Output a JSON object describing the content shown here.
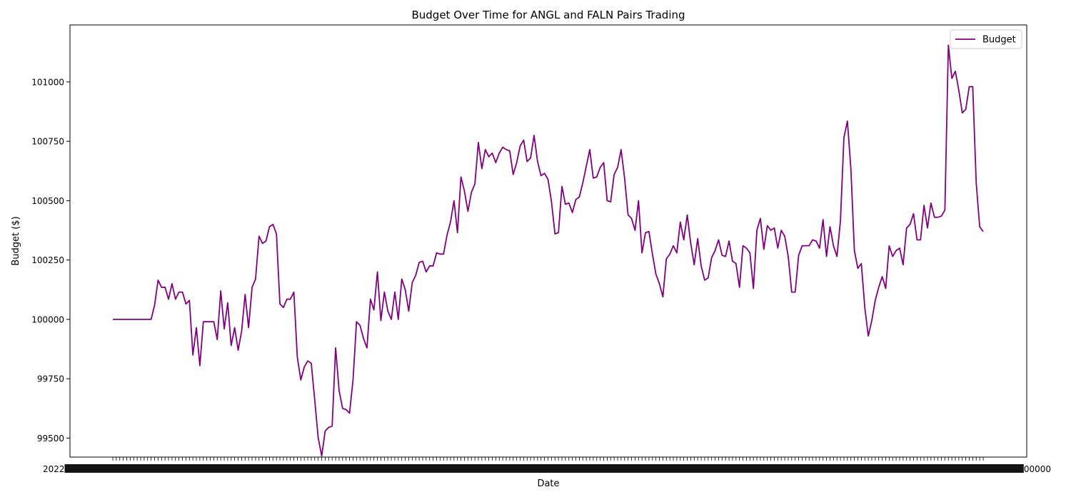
{
  "chart_data": {
    "type": "line",
    "title": "Budget Over Time for ANGL and FALN Pairs Trading",
    "xlabel": "Date",
    "ylabel": "Budget ($)",
    "ylim": [
      99420,
      101240
    ],
    "yticks": [
      99500,
      99750,
      100000,
      100250,
      100500,
      100750,
      101000
    ],
    "ytick_labels": [
      "99500",
      "99750",
      "100000",
      "100250",
      "100500",
      "100750",
      "101000"
    ],
    "grid": false,
    "legend_position": "top-right",
    "x_tick_labels_overlapping": true,
    "x_tick_label_text_left": "2022",
    "x_tick_label_text_right": "00000",
    "series": [
      {
        "name": "Budget",
        "color": "#800080",
        "values": [
          100000,
          100000,
          100000,
          100000,
          100000,
          100000,
          100000,
          100000,
          100000,
          100000,
          100000,
          100000,
          100060,
          100165,
          100135,
          100135,
          100085,
          100150,
          100085,
          100115,
          100115,
          100065,
          100080,
          99850,
          99965,
          99805,
          99990,
          99990,
          99990,
          99990,
          99915,
          100120,
          99960,
          100070,
          99890,
          99965,
          99870,
          99950,
          100105,
          99965,
          100135,
          100170,
          100350,
          100320,
          100330,
          100390,
          100400,
          100360,
          100065,
          100050,
          100085,
          100085,
          100115,
          99840,
          99745,
          99800,
          99825,
          99815,
          99660,
          99500,
          99425,
          99530,
          99545,
          99550,
          99880,
          99700,
          99625,
          99620,
          99605,
          99745,
          99990,
          99975,
          99920,
          99880,
          100085,
          100040,
          100200,
          99995,
          100115,
          100035,
          100000,
          100115,
          100000,
          100170,
          100125,
          100035,
          100155,
          100185,
          100240,
          100245,
          100200,
          100225,
          100225,
          100280,
          100275,
          100275,
          100355,
          100410,
          100500,
          100365,
          100600,
          100540,
          100455,
          100535,
          100570,
          100745,
          100635,
          100715,
          100685,
          100700,
          100660,
          100700,
          100725,
          100715,
          100710,
          100610,
          100660,
          100730,
          100755,
          100665,
          100680,
          100775,
          100665,
          100605,
          100615,
          100590,
          100495,
          100360,
          100365,
          100560,
          100485,
          100490,
          100450,
          100505,
          100515,
          100575,
          100645,
          100715,
          100595,
          100600,
          100640,
          100660,
          100500,
          100495,
          100610,
          100640,
          100715,
          100595,
          100440,
          100425,
          100375,
          100500,
          100280,
          100365,
          100370,
          100275,
          100190,
          100150,
          100095,
          100255,
          100275,
          100310,
          100280,
          100410,
          100335,
          100440,
          100320,
          100230,
          100340,
          100225,
          100165,
          100175,
          100260,
          100290,
          100335,
          100270,
          100265,
          100330,
          100245,
          100235,
          100135,
          100310,
          100300,
          100280,
          100130,
          100375,
          100425,
          100295,
          100395,
          100375,
          100385,
          100300,
          100375,
          100350,
          100265,
          100115,
          100115,
          100270,
          100310,
          100310,
          100310,
          100335,
          100330,
          100300,
          100420,
          100265,
          100390,
          100310,
          100265,
          100415,
          100765,
          100835,
          100635,
          100290,
          100215,
          100235,
          100050,
          99930,
          99995,
          100080,
          100135,
          100180,
          100130,
          100310,
          100265,
          100290,
          100300,
          100230,
          100385,
          100400,
          100445,
          100335,
          100335,
          100480,
          100385,
          100490,
          100430,
          100430,
          100435,
          100460,
          101155,
          101015,
          101045,
          100965,
          100870,
          100885,
          100980,
          100980,
          100575,
          100390,
          100370
        ]
      }
    ]
  }
}
